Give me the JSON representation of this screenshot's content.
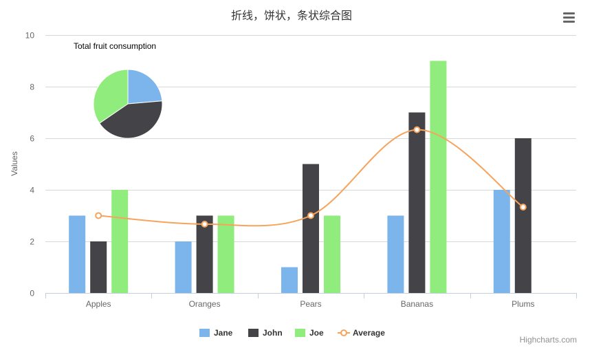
{
  "chart_data": {
    "title": "折线，饼状，条状综合图",
    "xlabel": "",
    "ylabel": "Values",
    "ylim": [
      0,
      10
    ],
    "yticks": [
      0,
      2,
      4,
      6,
      8,
      10
    ],
    "grid": true,
    "legend_placement": "bottom-center",
    "categories": [
      "Apples",
      "Oranges",
      "Pears",
      "Bananas",
      "Plums"
    ],
    "series": [
      {
        "name": "Jane",
        "type": "bar",
        "color": "#7cb5ec",
        "values": [
          3,
          2,
          1,
          3,
          4
        ]
      },
      {
        "name": "John",
        "type": "bar",
        "color": "#434348",
        "values": [
          2,
          3,
          5,
          7,
          6
        ]
      },
      {
        "name": "Joe",
        "type": "bar",
        "color": "#90ed7d",
        "values": [
          4,
          3,
          3,
          9,
          0
        ]
      },
      {
        "name": "Average",
        "type": "line",
        "color": "#f7a35c",
        "values": [
          3,
          2.67,
          3,
          6.33,
          3.33
        ]
      }
    ],
    "pie": {
      "title": "Total fruit consumption",
      "slices": [
        {
          "name": "Jane",
          "value": 13,
          "color": "#7cb5ec"
        },
        {
          "name": "John",
          "value": 23,
          "color": "#434348"
        },
        {
          "name": "Joe",
          "value": 19,
          "color": "#90ed7d"
        }
      ]
    }
  },
  "credits": "Highcharts.com",
  "menu_icon": "hamburger-menu-icon"
}
